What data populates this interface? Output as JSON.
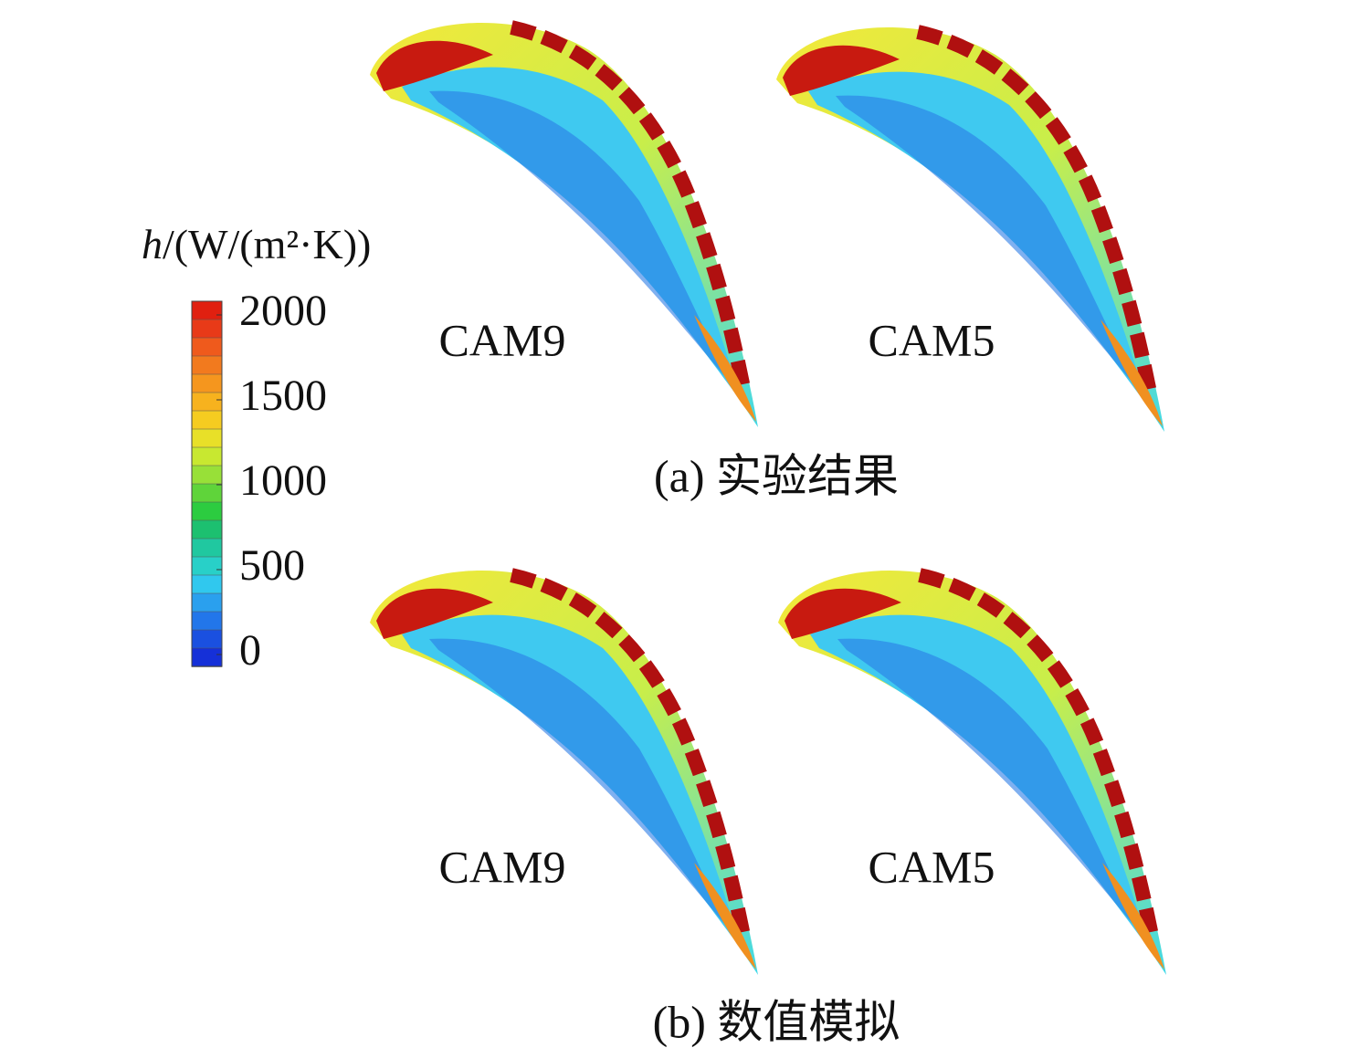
{
  "colorbar": {
    "label": {
      "symbol": "h",
      "unit": "/(W/(m²·K))"
    },
    "range": [
      0,
      2000
    ],
    "ticks": [
      2000,
      1500,
      1000,
      500,
      0
    ]
  },
  "panels": [
    {
      "caption": "(a) 实验结果",
      "items": [
        "CAM9",
        "CAM5"
      ]
    },
    {
      "caption": "(b) 数值模拟",
      "items": [
        "CAM9",
        "CAM5"
      ]
    }
  ]
}
